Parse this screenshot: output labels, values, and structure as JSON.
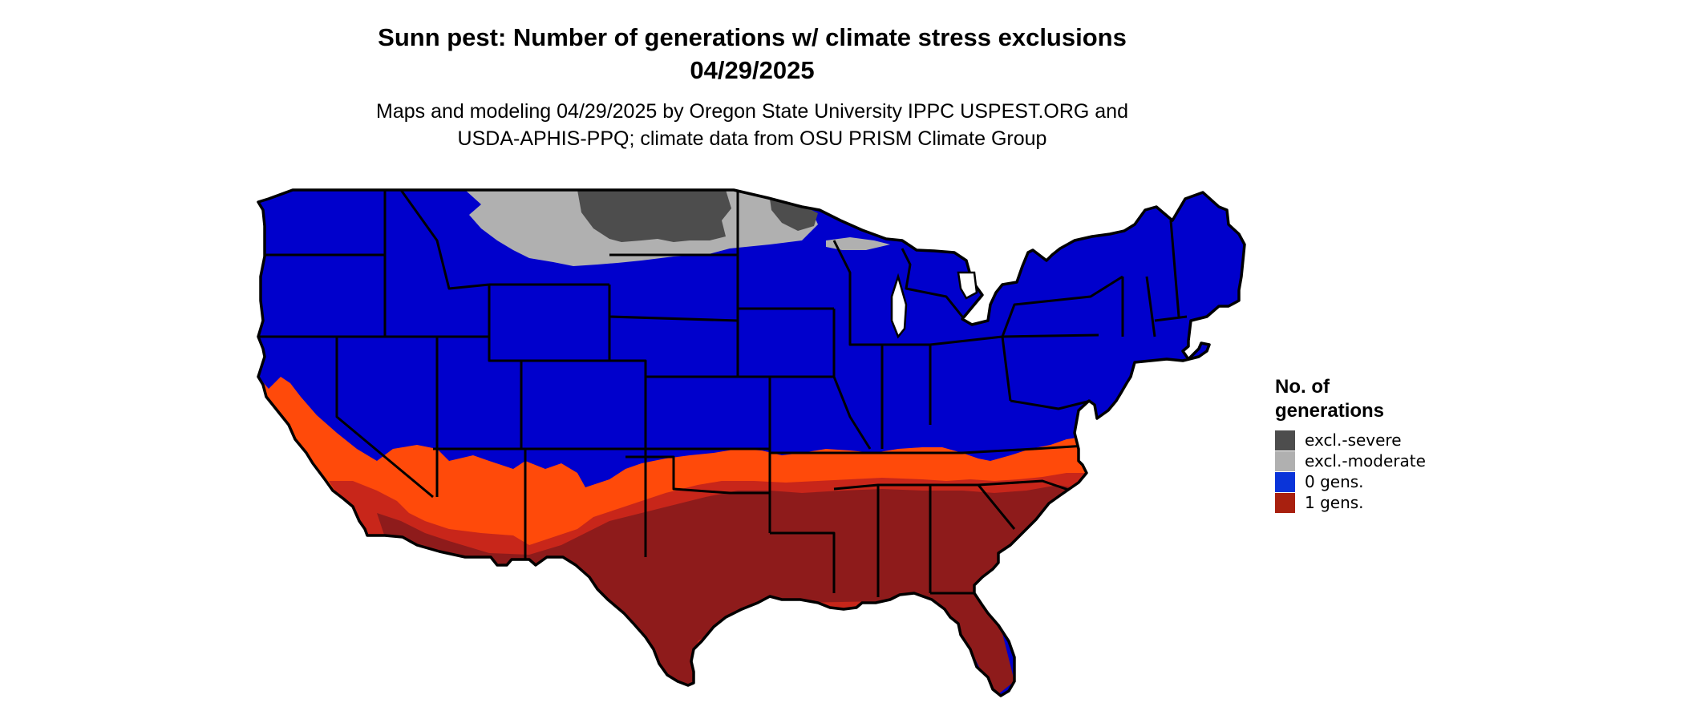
{
  "title": {
    "line1": "Sunn pest: Number of generations w/ climate stress exclusions",
    "line2": "04/29/2025"
  },
  "subtitle": {
    "line1": "Maps and modeling 04/29/2025 by Oregon State University IPPC USPEST.ORG and",
    "line2": "USDA-APHIS-PPQ; climate data from OSU PRISM Climate Group"
  },
  "legend": {
    "title_line1": "No. of",
    "title_line2": "generations",
    "items": [
      {
        "label": "excl.-severe",
        "color": "#4d4d4d"
      },
      {
        "label": "excl.-moderate",
        "color": "#b0b0b0"
      },
      {
        "label": "0 gens.",
        "color": "#0a34d9"
      },
      {
        "label": "1 gens.",
        "color": "#a8200f"
      }
    ]
  },
  "map": {
    "region": "Conterminous United States",
    "colors": {
      "base": "#0000cc",
      "severe": "#4d4d4d",
      "moderate": "#b0b0b0",
      "one_gen_light": "#ff4a0a",
      "one_gen_mid": "#c8261a",
      "one_gen_dark": "#8e1b1b",
      "borders": "#000000"
    }
  }
}
